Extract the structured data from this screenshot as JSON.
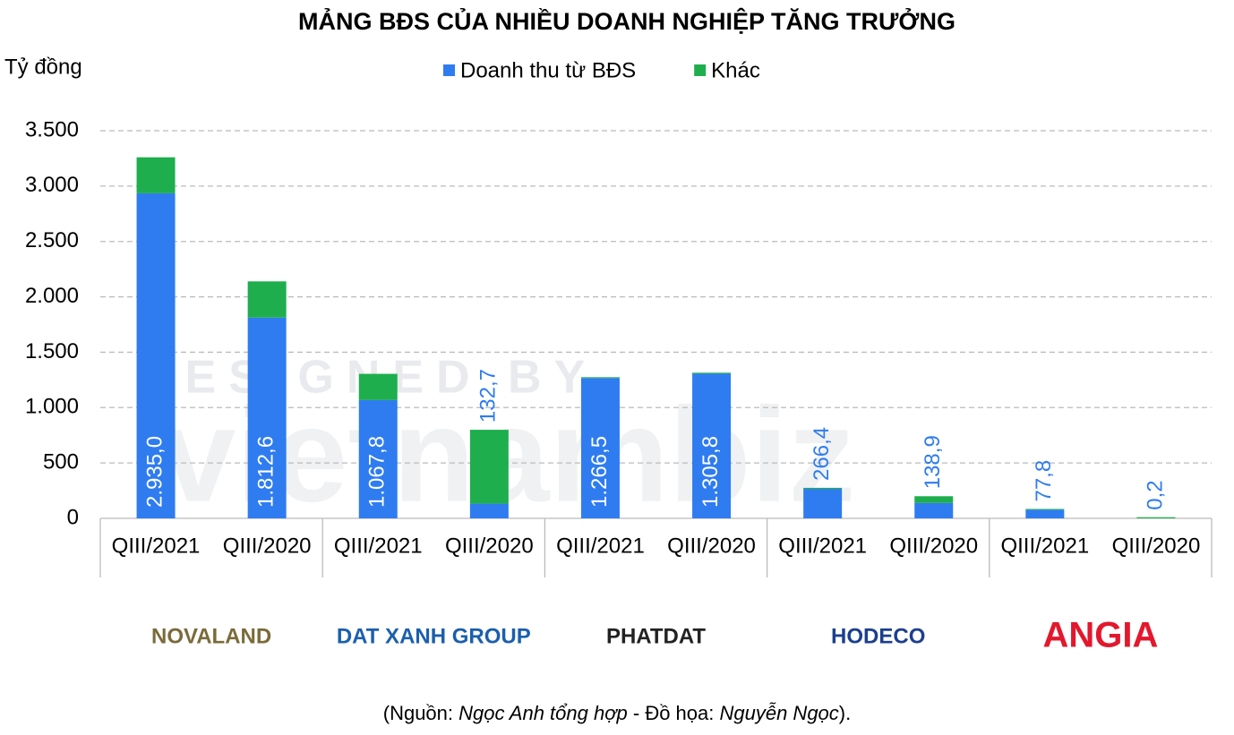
{
  "chart_data": {
    "type": "stacked_bar",
    "title": "MẢNG BĐS CỦA NHIỀU DOANH NGHIỆP TĂNG TRƯỞNG",
    "y_label": "Tỷ đồng",
    "categories": [
      "QIII/2021",
      "QIII/2020",
      "QIII/2021",
      "QIII/2020",
      "QIII/2021",
      "QIII/2020",
      "QIII/2021",
      "QIII/2020",
      "QIII/2021",
      "QIII/2020"
    ],
    "groups": [
      "NOVALAND",
      "DAT XANH GROUP",
      "PHATDAT",
      "HODECO",
      "ANGIA"
    ],
    "series": [
      {
        "name": "Doanh thu từ BĐS",
        "color": "#2f7cf0",
        "values": [
          2935.0,
          1812.6,
          1067.8,
          132.7,
          1266.5,
          1305.8,
          266.4,
          138.9,
          77.8,
          0.2
        ],
        "value_labels": [
          "2.935,0",
          "1.812,6",
          "1.067,8",
          "132,7",
          "1.266,5",
          "1.305,8",
          "266,4",
          "138,9",
          "77,8",
          "0,2"
        ]
      },
      {
        "name": "Khác",
        "color": "#1fae4e",
        "values": [
          325,
          327,
          237,
          667,
          8,
          9,
          9,
          61,
          7,
          10
        ]
      }
    ],
    "ylim": [
      0,
      3500
    ],
    "yticks": [
      0,
      500,
      {
        "value": 1000,
        "label": "1.000"
      },
      {
        "value": 1500,
        "label": "1.500"
      },
      {
        "value": 2000,
        "label": "2.000"
      },
      {
        "value": 2500,
        "label": "2.500"
      },
      {
        "value": 3000,
        "label": "3.000"
      },
      {
        "value": 3500,
        "label": "3.500"
      }
    ],
    "grid": true,
    "legend": "top",
    "watermark": [
      "DESIGNED BY",
      "vietnambiz"
    ],
    "source": {
      "open": "(Nguồn: ",
      "author": "Ngọc Anh tổng hợp",
      "mid": " - Đồ họa: ",
      "designer": "Nguyễn Ngọc",
      "close": ")."
    }
  }
}
